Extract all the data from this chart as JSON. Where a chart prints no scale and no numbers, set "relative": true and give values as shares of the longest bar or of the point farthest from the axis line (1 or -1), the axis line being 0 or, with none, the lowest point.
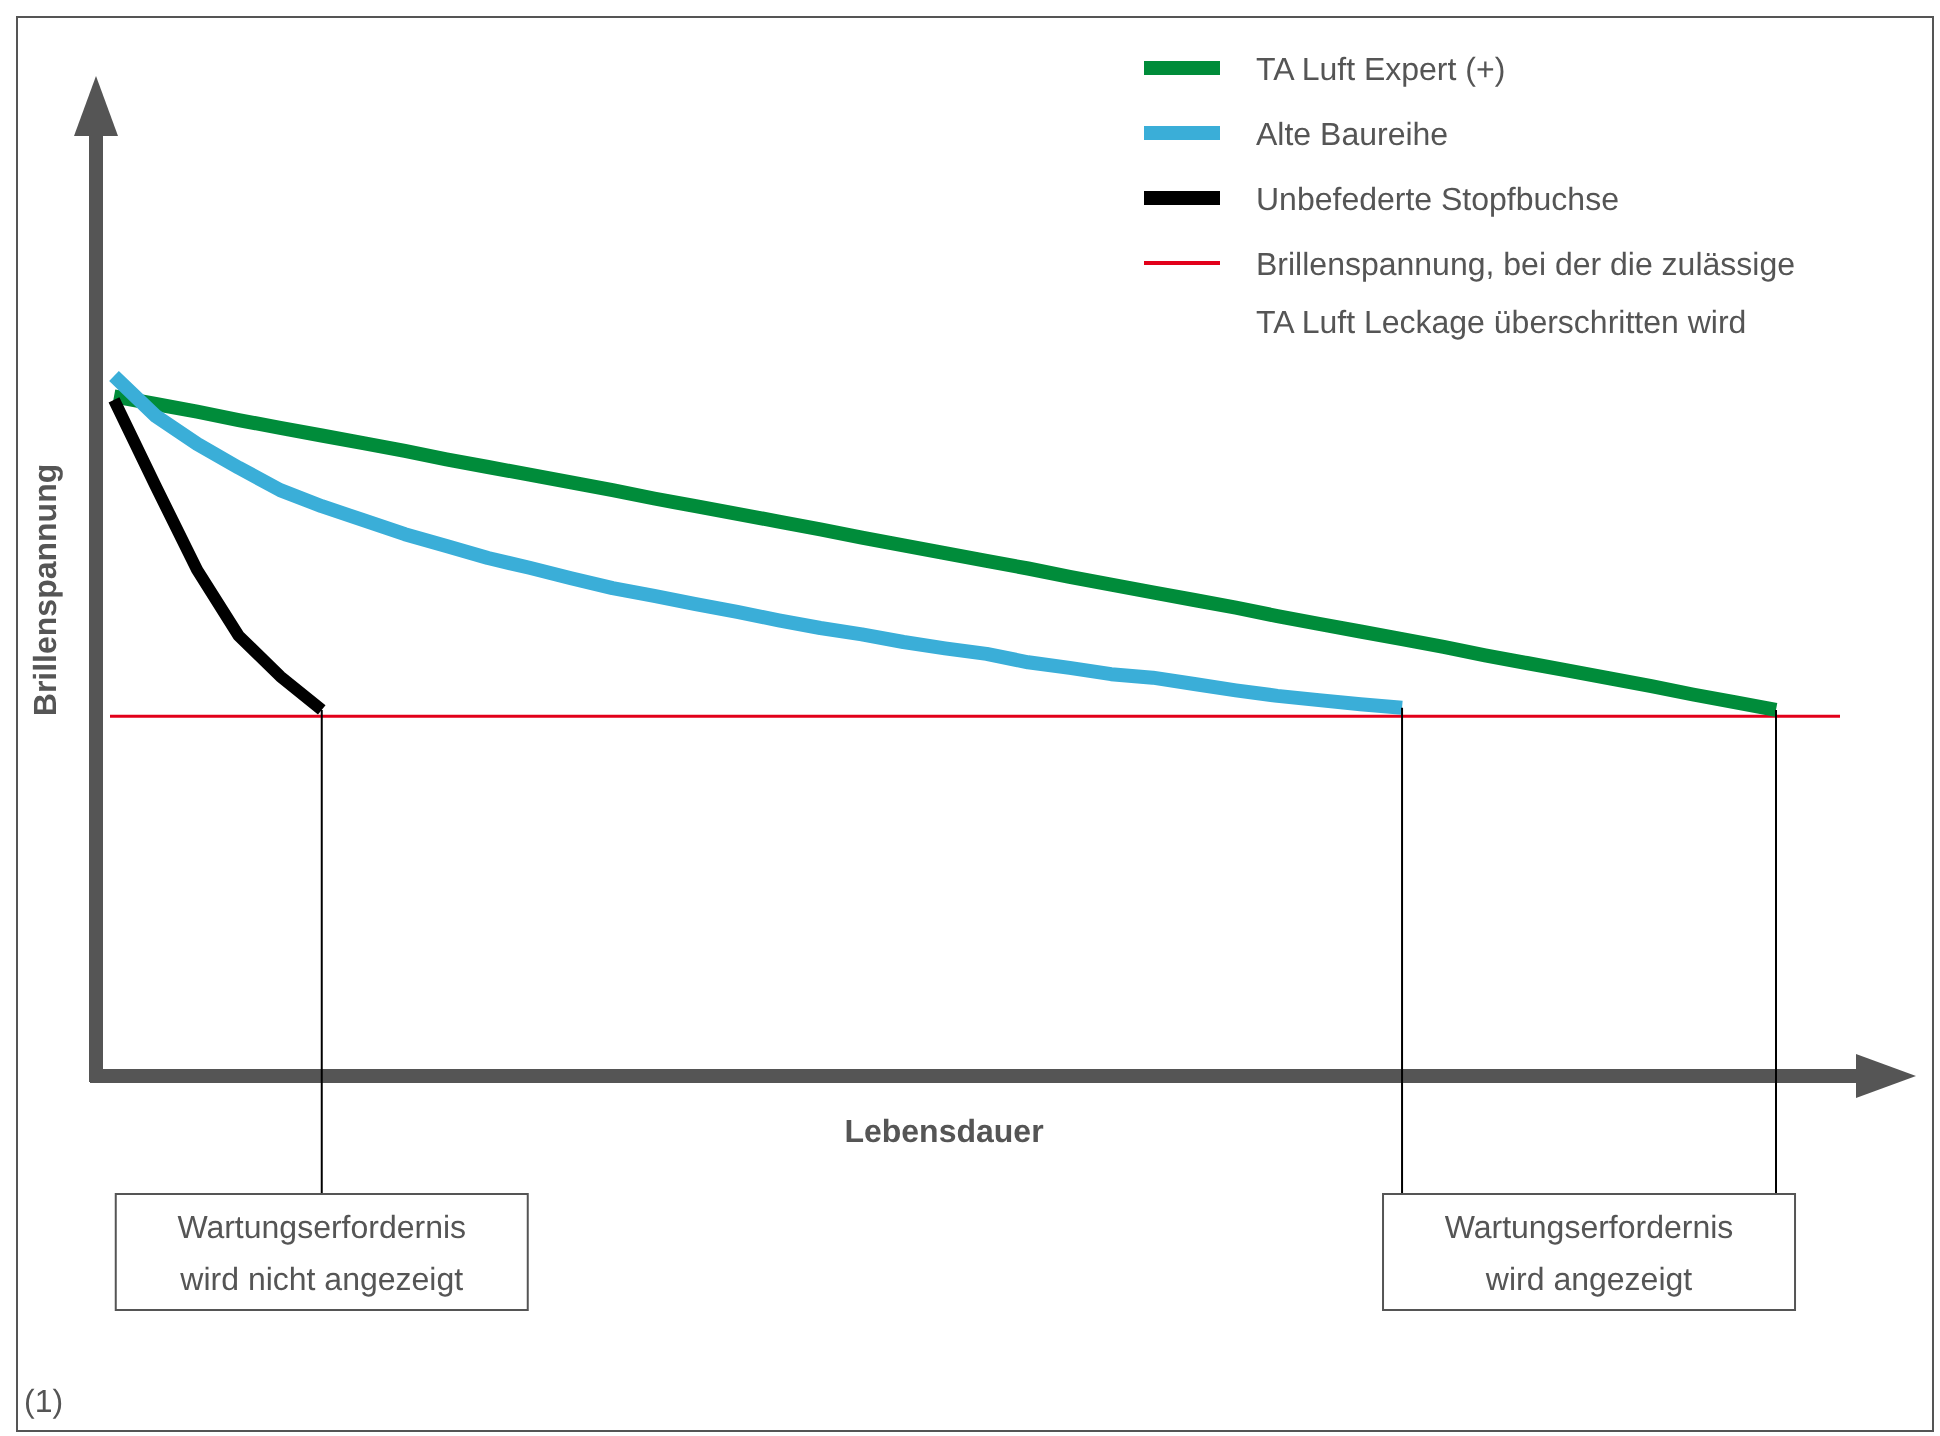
{
  "chart_data": {
    "type": "line",
    "relative": true,
    "xlabel": "Lebensdauer",
    "ylabel": "Brillenspannung",
    "legend": "top right",
    "marker": "none",
    "line_style": "solid",
    "categories": [
      null,
      null,
      null,
      null,
      null,
      null,
      null,
      null,
      null,
      null,
      null,
      null,
      null,
      null,
      null,
      null,
      null,
      null,
      null,
      null,
      null,
      null,
      null,
      null,
      null,
      null,
      null,
      null,
      null,
      null,
      null,
      null,
      null,
      null,
      null,
      null,
      null,
      null,
      null,
      null,
      null
    ],
    "series": [
      {
        "name": "TA Luft Expert (+)",
        "color": "#008c3a",
        "values": [
          0.971,
          0.96,
          0.949,
          0.937,
          0.926,
          0.915,
          0.904,
          0.893,
          0.881,
          0.87,
          0.859,
          0.848,
          0.837,
          0.825,
          0.814,
          0.803,
          0.792,
          0.781,
          0.769,
          0.758,
          0.747,
          0.736,
          0.725,
          0.713,
          0.702,
          0.691,
          0.68,
          0.669,
          0.657,
          0.646,
          0.635,
          0.624,
          0.613,
          0.601,
          0.59,
          0.579,
          0.568,
          0.557,
          0.545,
          0.534,
          0.523
        ]
      },
      {
        "name": "Alte Baureihe",
        "color": "#3aaed8",
        "values": [
          1,
          0.943,
          0.903,
          0.869,
          0.837,
          0.814,
          0.794,
          0.774,
          0.757,
          0.74,
          0.726,
          0.711,
          0.697,
          0.686,
          0.674,
          0.663,
          0.651,
          0.64,
          0.631,
          0.62,
          0.611,
          0.603,
          0.591,
          0.583,
          0.574,
          0.569,
          0.56,
          0.551,
          0.543,
          0.537,
          0.531,
          0.526,
          null,
          null,
          null,
          null,
          null,
          null,
          null,
          null,
          null
        ]
      },
      {
        "name": "Unbefederte Stopfbuchse",
        "color": "#000000",
        "values": [
          0.966,
          0.843,
          0.723,
          0.629,
          0.571,
          0.523,
          null,
          null,
          null,
          null,
          null,
          null,
          null,
          null,
          null,
          null,
          null,
          null,
          null,
          null,
          null,
          null,
          null,
          null,
          null,
          null,
          null,
          null,
          null,
          null,
          null,
          null,
          null,
          null,
          null,
          null,
          null,
          null,
          null,
          null,
          null
        ]
      }
    ],
    "ref_lines": [
      {
        "axis": "y",
        "value": 0.514,
        "label": "Brillenspannung, bei der die zulässige\nTA Luft Leckage überschritten wird",
        "color": "#e2001a"
      }
    ],
    "annotations": [
      "Wartungserfordernis\nwird nicht angezeigt",
      "Wartungserfordernis\nwird angezeigt",
      "(1)"
    ]
  }
}
